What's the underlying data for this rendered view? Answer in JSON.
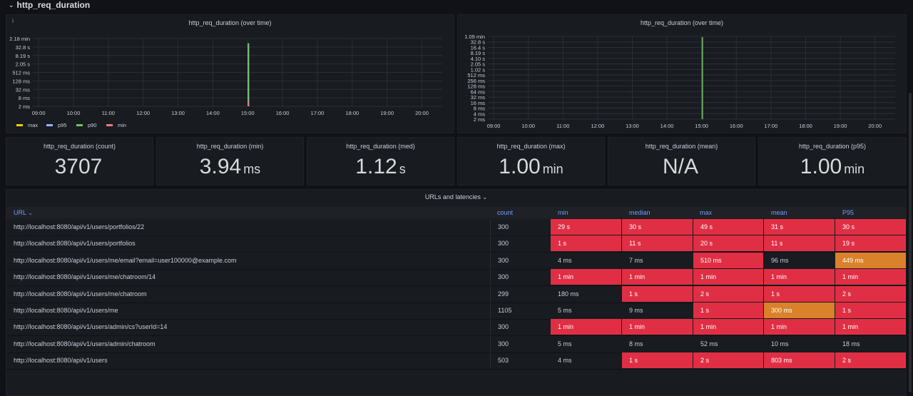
{
  "row": {
    "title": "http_req_duration"
  },
  "chart_left": {
    "title": "http_req_duration (over time)",
    "legend": [
      {
        "name": "max",
        "color": "#f2cc0c"
      },
      {
        "name": "p95",
        "color": "#8ab8ff"
      },
      {
        "name": "p90",
        "color": "#73bf69"
      },
      {
        "name": "min",
        "color": "#ff7383"
      }
    ]
  },
  "chart_right": {
    "title": "http_req_duration (over time)"
  },
  "chart_data": [
    {
      "type": "bar",
      "title": "http_req_duration (over time)",
      "yscale": "log",
      "ytick_labels": [
        "2.18 min",
        "32.8 s",
        "8.19 s",
        "2.05 s",
        "512 ms",
        "128 ms",
        "32 ms",
        "8 ms",
        "2 ms"
      ],
      "xtick_labels": [
        "09:00",
        "10:00",
        "11:00",
        "12:00",
        "13:00",
        "14:00",
        "15:00",
        "16:00",
        "17:00",
        "18:00",
        "19:00",
        "20:00"
      ],
      "x_range": [
        "08:50",
        "20:35"
      ],
      "grid": true,
      "legend_position": "bottom-left",
      "series": [
        {
          "name": "max",
          "x": [
            "15:00"
          ],
          "values": [
            "1.00 min"
          ]
        },
        {
          "name": "p95",
          "x": [
            "15:00"
          ],
          "values": [
            "1.00 min"
          ]
        },
        {
          "name": "p90",
          "x": [
            "15:00"
          ],
          "values": [
            "1.00 min"
          ]
        },
        {
          "name": "min",
          "x": [
            "15:00"
          ],
          "values": [
            "3.94 ms"
          ]
        }
      ]
    },
    {
      "type": "bar",
      "title": "http_req_duration (over time)",
      "yscale": "log",
      "ytick_labels": [
        "1.09 min",
        "32.8 s",
        "16.4 s",
        "8.19 s",
        "4.10 s",
        "2.05 s",
        "1.02 s",
        "512 ms",
        "256 ms",
        "128 ms",
        "64 ms",
        "32 ms",
        "16 ms",
        "8 ms",
        "4 ms",
        "2 ms"
      ],
      "xtick_labels": [
        "09:00",
        "10:00",
        "11:00",
        "12:00",
        "13:00",
        "14:00",
        "15:00",
        "16:00",
        "17:00",
        "18:00",
        "19:00",
        "20:00"
      ],
      "x_range": [
        "08:50",
        "20:35"
      ],
      "grid": true,
      "series": [
        {
          "x": [
            "15:00"
          ],
          "values": [
            "1.00 min"
          ]
        }
      ]
    }
  ],
  "stats": [
    {
      "title": "http_req_duration (count)",
      "value": "3707",
      "unit": ""
    },
    {
      "title": "http_req_duration (min)",
      "value": "3.94",
      "unit": "ms"
    },
    {
      "title": "http_req_duration (med)",
      "value": "1.12",
      "unit": "s"
    },
    {
      "title": "http_req_duration (max)",
      "value": "1.00",
      "unit": "min"
    },
    {
      "title": "http_req_duration (mean)",
      "value": "N/A",
      "unit": ""
    },
    {
      "title": "http_req_duration (p95)",
      "value": "1.00",
      "unit": "min"
    }
  ],
  "table": {
    "title": "URLs and latencies",
    "headers": {
      "url": "URL",
      "count": "count",
      "min": "min",
      "median": "median",
      "max": "max",
      "mean": "mean",
      "p95": "P95"
    },
    "rows": [
      {
        "url": "http://localhost:8080/api/v1/users/portfolios/22",
        "count": "300",
        "min": "29 s",
        "median": "30 s",
        "max": "49 s",
        "mean": "31 s",
        "p95": "30 s"
      },
      {
        "url": "http://localhost:8080/api/v1/users/portfolios",
        "count": "300",
        "min": "1 s",
        "median": "11 s",
        "max": "20 s",
        "mean": "11 s",
        "p95": "19 s"
      },
      {
        "url": "http://localhost:8080/api/v1/users/me/email?email=user100000@example.com",
        "count": "300",
        "min": "4 ms",
        "median": "7 ms",
        "max": "510 ms",
        "mean": "96 ms",
        "p95": "449 ms"
      },
      {
        "url": "http://localhost:8080/api/v1/users/me/chatroom/14",
        "count": "300",
        "min": "1 min",
        "median": "1 min",
        "max": "1 min",
        "mean": "1 min",
        "p95": "1 min"
      },
      {
        "url": "http://localhost:8080/api/v1/users/me/chatroom",
        "count": "299",
        "min": "180 ms",
        "median": "1 s",
        "max": "2 s",
        "mean": "1 s",
        "p95": "2 s"
      },
      {
        "url": "http://localhost:8080/api/v1/users/me",
        "count": "1105",
        "min": "5 ms",
        "median": "9 ms",
        "max": "1 s",
        "mean": "300 ms",
        "p95": "1 s"
      },
      {
        "url": "http://localhost:8080/api/v1/users/admin/cs?userId=14",
        "count": "300",
        "min": "1 min",
        "median": "1 min",
        "max": "1 min",
        "mean": "1 min",
        "p95": "1 min"
      },
      {
        "url": "http://localhost:8080/api/v1/users/admin/chatroom",
        "count": "300",
        "min": "5 ms",
        "median": "8 ms",
        "max": "52 ms",
        "mean": "10 ms",
        "p95": "18 ms"
      },
      {
        "url": "http://localhost:8080/api/v1/users",
        "count": "503",
        "min": "4 ms",
        "median": "1 s",
        "max": "2 s",
        "mean": "803 ms",
        "p95": "2 s"
      }
    ],
    "cell_colors": [
      {
        "min": "red",
        "median": "red",
        "max": "red",
        "mean": "red",
        "p95": "red"
      },
      {
        "min": "red",
        "median": "red",
        "max": "red",
        "mean": "red",
        "p95": "red"
      },
      {
        "min": "",
        "median": "",
        "max": "red",
        "mean": "",
        "p95": "orange"
      },
      {
        "min": "red",
        "median": "red",
        "max": "red",
        "mean": "red",
        "p95": "red"
      },
      {
        "min": "",
        "median": "red",
        "max": "red",
        "mean": "red",
        "p95": "red"
      },
      {
        "min": "",
        "median": "",
        "max": "red",
        "mean": "orange",
        "p95": "red"
      },
      {
        "min": "red",
        "median": "red",
        "max": "red",
        "mean": "red",
        "p95": "red"
      },
      {
        "min": "",
        "median": "",
        "max": "",
        "mean": "",
        "p95": ""
      },
      {
        "min": "",
        "median": "red",
        "max": "red",
        "mean": "red",
        "p95": "red"
      }
    ]
  }
}
